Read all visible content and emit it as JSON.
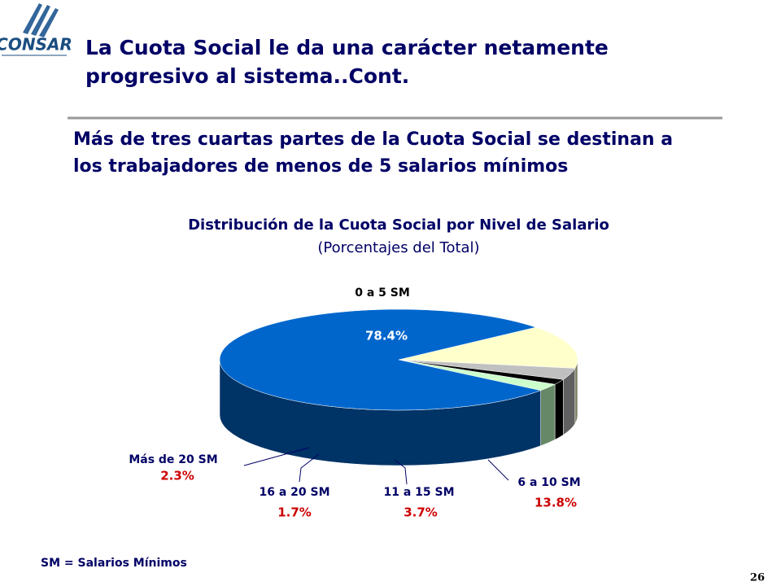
{
  "slide": {
    "logo": "CONSAR",
    "title": [
      "La Cuota Social le da una carácter netamente",
      "progresivo al sistema..Cont."
    ],
    "subtitle": [
      "Más de tres cuartas partes de la Cuota Social se destinan a",
      "los trabajadores de menos de 5 salarios mínimos"
    ],
    "footnote": "SM = Salarios Mínimos",
    "page_number": "26"
  },
  "chart_data": {
    "type": "pie",
    "title": "Distribución de la Cuota Social por Nivel de Salario",
    "subtitle": "(Porcentajes del Total)",
    "categories": [
      "0 a 5 SM",
      "6 a 10 SM",
      "11 a 15 SM",
      "16 a 20 SM",
      "Más de 20 SM"
    ],
    "values": [
      78.4,
      13.8,
      3.7,
      1.7,
      2.3
    ],
    "value_labels": [
      "78.4%",
      "13.8%",
      "3.7%",
      "1.7%",
      "2.3%"
    ],
    "colors": [
      "#0066cc",
      "#ffffcc",
      "#c0c0c0",
      "#000000",
      "#ccffcc"
    ],
    "side_colors": [
      "#003366",
      "#808066",
      "#606060",
      "#000000",
      "#668866"
    ]
  }
}
